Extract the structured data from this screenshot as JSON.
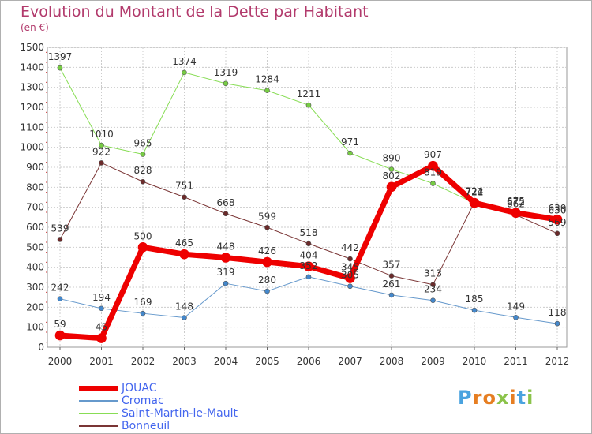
{
  "header": {
    "title": "Evolution du Montant de la Dette par Habitant",
    "subtitle": "(en €)"
  },
  "logo": {
    "text": "Proxiti",
    "colors": [
      "#4aa3df",
      "#e67e22",
      "#e67e22",
      "#8bc34a",
      "#e67e22",
      "#4aa3df",
      "#8bc34a"
    ]
  },
  "chart_data": {
    "type": "line",
    "x": [
      "2000",
      "2001",
      "2002",
      "2003",
      "2004",
      "2005",
      "2006",
      "2007",
      "2008",
      "2009",
      "2010",
      "2011",
      "2012"
    ],
    "ylim": [
      0,
      1500
    ],
    "yticks": [
      0,
      100,
      200,
      300,
      400,
      500,
      600,
      700,
      800,
      900,
      1000,
      1100,
      1200,
      1300,
      1400,
      1500
    ],
    "grid": true,
    "legend_position": "bottom-left",
    "series": [
      {
        "name": "Saint-Martin-le-Mault",
        "color": "#88dd55",
        "marker": "#77cc44",
        "width": 1,
        "values": [
          1397,
          1010,
          965,
          1374,
          1319,
          1284,
          1211,
          971,
          890,
          819,
          721,
          675,
          630
        ]
      },
      {
        "name": "Bonneuil",
        "color": "#7a3535",
        "marker": "#6b2a2a",
        "width": 1,
        "values": [
          539,
          922,
          828,
          751,
          668,
          599,
          518,
          442,
          357,
          313,
          724,
          662,
          569
        ]
      },
      {
        "name": "Cromac",
        "color": "#6699cc",
        "marker": "#4488cc",
        "width": 1,
        "values": [
          242,
          194,
          169,
          148,
          319,
          280,
          352,
          305,
          261,
          234,
          185,
          149,
          118
        ]
      },
      {
        "name": "JOUAC",
        "color": "#ee0000",
        "marker": "#ee0000",
        "width": 7,
        "values": [
          59,
          45,
          500,
          465,
          448,
          426,
          404,
          345,
          802,
          907,
          722,
          672,
          639
        ]
      }
    ],
    "legend_order": [
      "JOUAC",
      "Cromac",
      "Saint-Martin-le-Mault",
      "Bonneuil"
    ]
  }
}
